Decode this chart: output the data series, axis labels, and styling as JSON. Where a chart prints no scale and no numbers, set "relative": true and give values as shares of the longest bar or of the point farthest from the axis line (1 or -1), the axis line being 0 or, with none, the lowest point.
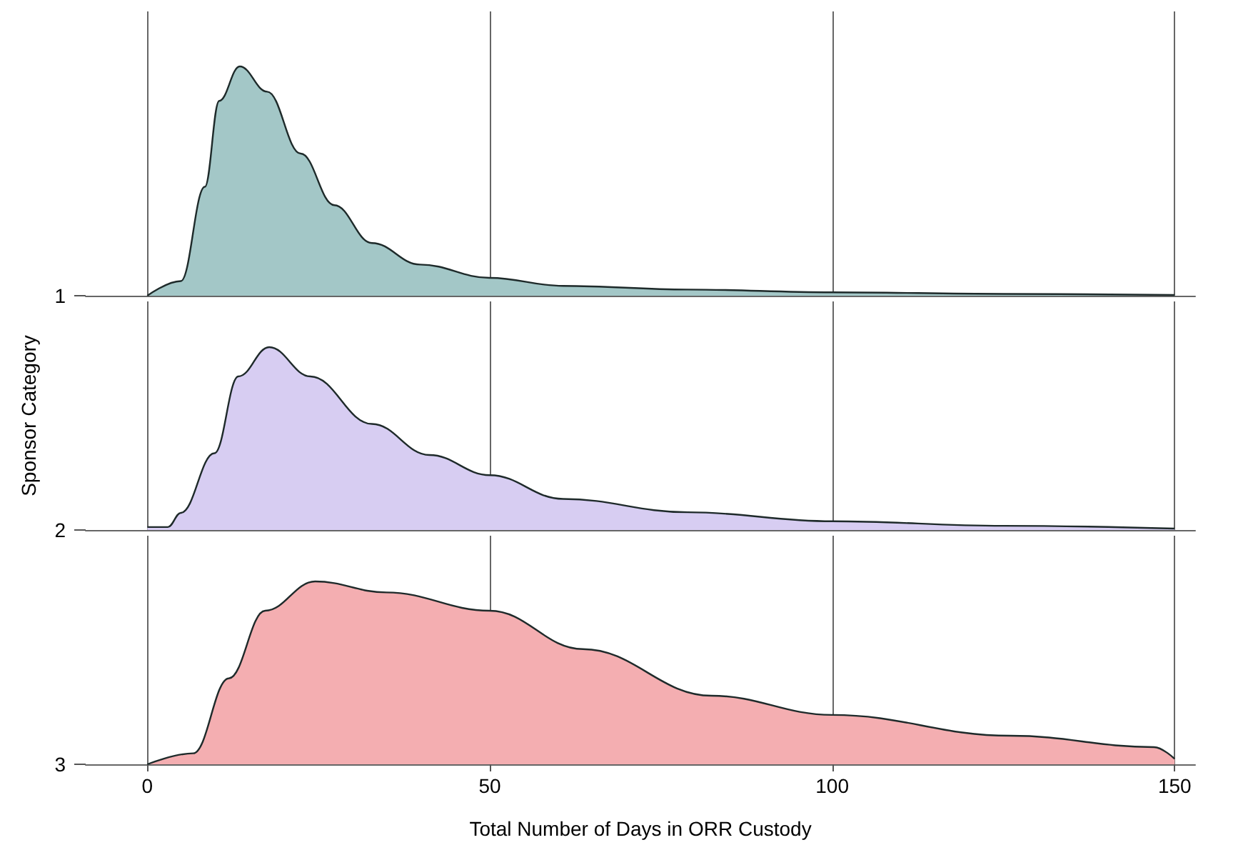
{
  "chart_data": [
    {
      "type": "area",
      "relative": true,
      "xlim": [
        -9,
        153
      ],
      "xticks": [
        0,
        50,
        100,
        150
      ],
      "grid": "x",
      "tick_labels": false,
      "series": [
        {
          "name": "1",
          "color": "#a3c7c7",
          "x": [
            0,
            4.9,
            8.4,
            10.5,
            13.5,
            17.5,
            22.4,
            27.3,
            32.8,
            39.8,
            50,
            60.7,
            78.9,
            100,
            125,
            150
          ],
          "values": [
            0,
            0.064,
            0.475,
            0.85,
            1,
            0.89,
            0.62,
            0.395,
            0.23,
            0.136,
            0.078,
            0.043,
            0.027,
            0.015,
            0.008,
            0.003
          ]
        }
      ]
    },
    {
      "type": "area",
      "relative": true,
      "ylabel": "Sponsor Category",
      "xlim": [
        -9,
        153
      ],
      "xticks": [
        0,
        50,
        100,
        150
      ],
      "grid": "x",
      "tick_labels": false,
      "series": [
        {
          "name": "2",
          "color": "#d7cdf2",
          "x": [
            0,
            3,
            4.9,
            9.8,
            13.3,
            17.8,
            23.8,
            32.8,
            41.2,
            50,
            60.7,
            78.9,
            100,
            125,
            150
          ],
          "values": [
            0.016,
            0.016,
            0.094,
            0.42,
            0.84,
            1,
            0.84,
            0.58,
            0.41,
            0.3,
            0.17,
            0.097,
            0.048,
            0.023,
            0.008
          ]
        }
      ]
    },
    {
      "type": "area",
      "relative": true,
      "xlabel": "Total Number of Days in ORR Custody",
      "xlim": [
        -9,
        153
      ],
      "xticks": [
        0,
        50,
        100,
        150
      ],
      "grid": "x",
      "tick_labels": "x",
      "series": [
        {
          "name": "3",
          "color": "#f4aeb1",
          "x": [
            0,
            6.7,
            11.9,
            17.2,
            24.5,
            34.9,
            50,
            63.6,
            82.4,
            100,
            126,
            147,
            150
          ],
          "values": [
            0,
            0.06,
            0.47,
            0.84,
            1,
            0.94,
            0.84,
            0.63,
            0.375,
            0.27,
            0.156,
            0.094,
            0.03
          ]
        }
      ]
    }
  ]
}
